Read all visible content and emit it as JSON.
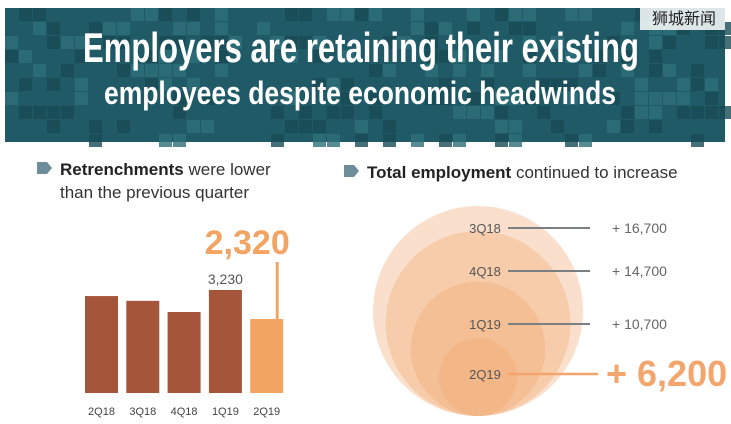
{
  "watermark": "狮城新闻",
  "title": [
    "Employers are retaining their existing",
    "employees despite economic headwinds"
  ],
  "chart_data": [
    {
      "type": "bar",
      "title_bold": "Retrenchments",
      "title_rest": "were lower than the previous quarter",
      "categories": [
        "2Q18",
        "3Q18",
        "4Q18",
        "1Q19",
        "2Q19"
      ],
      "values": [
        3040,
        2890,
        2540,
        3230,
        2320
      ],
      "value_labels": [
        null,
        null,
        null,
        "3,230",
        "2,320"
      ],
      "colors": [
        "#a5553a",
        "#a5553a",
        "#a5553a",
        "#a5553a",
        "#f2a462"
      ]
    },
    {
      "type": "bubble",
      "title_bold": "Total employment",
      "title_rest": "continued to increase",
      "categories": [
        "3Q18",
        "4Q18",
        "1Q19",
        "2Q19"
      ],
      "values": [
        16700,
        14700,
        10700,
        6200
      ],
      "value_labels": [
        "+ 16,700",
        "+ 14,700",
        "+ 10,700",
        "+ 6,200"
      ],
      "color": "#f2a66e"
    }
  ]
}
